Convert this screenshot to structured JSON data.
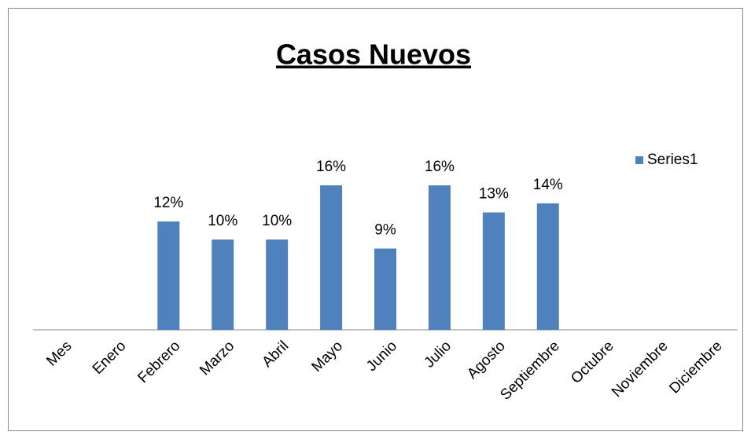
{
  "chart_data": {
    "type": "bar",
    "title": "Casos Nuevos",
    "categories": [
      "Mes",
      "Enero",
      "Febrero",
      "Marzo",
      "Abril",
      "Mayo",
      "Junio",
      "Julio",
      "Agosto",
      "Septiembre",
      "Octubre",
      "Noviembre",
      "Diciembre"
    ],
    "series": [
      {
        "name": "Series1",
        "color": "#4f81bd",
        "values": [
          null,
          null,
          12,
          10,
          10,
          16,
          9,
          16,
          13,
          14,
          null,
          null,
          null
        ],
        "value_labels": [
          null,
          null,
          "12%",
          "10%",
          "10%",
          "16%",
          "9%",
          "16%",
          "13%",
          "14%",
          null,
          null,
          null
        ]
      }
    ],
    "legend": "right"
  }
}
